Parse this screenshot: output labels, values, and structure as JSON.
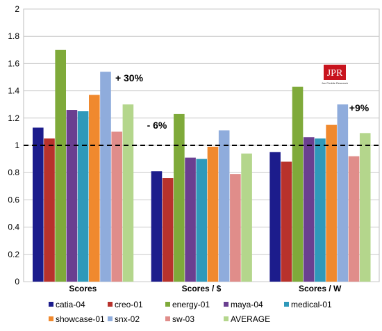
{
  "chart_data": {
    "type": "bar",
    "title": "",
    "xlabel": "",
    "ylabel": "",
    "categories": [
      "Scores",
      "Scores / $",
      "Scores / W"
    ],
    "ylim": [
      0,
      2
    ],
    "yticks": [
      "0",
      "0.2",
      "0.4",
      "0.6",
      "0.8",
      "1",
      "1.2",
      "1.4",
      "1.6",
      "1.8",
      "2"
    ],
    "grid": true,
    "legend_position": "bottom",
    "reference_line": {
      "value": 1.0,
      "style": "dashed",
      "color": "#000000"
    },
    "series": [
      {
        "name": "catia-04",
        "color": "#1c1c8c",
        "values": [
          1.13,
          0.81,
          0.95
        ]
      },
      {
        "name": "creo-01",
        "color": "#b8322c",
        "values": [
          1.05,
          0.76,
          0.88
        ]
      },
      {
        "name": "energy-01",
        "color": "#7faa3a",
        "values": [
          1.7,
          1.23,
          1.43
        ]
      },
      {
        "name": "maya-04",
        "color": "#6a3f90",
        "values": [
          1.26,
          0.91,
          1.06
        ]
      },
      {
        "name": "medical-01",
        "color": "#2f99ba",
        "values": [
          1.25,
          0.9,
          1.05
        ]
      },
      {
        "name": "showcase-01",
        "color": "#f0892e",
        "values": [
          1.37,
          0.99,
          1.15
        ]
      },
      {
        "name": "snx-02",
        "color": "#8facdc",
        "values": [
          1.54,
          1.11,
          1.3
        ]
      },
      {
        "name": "sw-03",
        "color": "#e08d8a",
        "values": [
          1.1,
          0.79,
          0.92
        ]
      },
      {
        "name": "AVERAGE",
        "color": "#b4d68c",
        "values": [
          1.3,
          0.94,
          1.09
        ]
      }
    ],
    "annotations": [
      {
        "text": "+ 30%",
        "category": "Scores"
      },
      {
        "text": "- 6%",
        "category": "Scores / $"
      },
      {
        "text": "+9%",
        "category": "Scores / W"
      }
    ]
  },
  "logo": {
    "text": "JPR",
    "subtext": "Jon Peddie Research",
    "color": "#c8141e"
  }
}
